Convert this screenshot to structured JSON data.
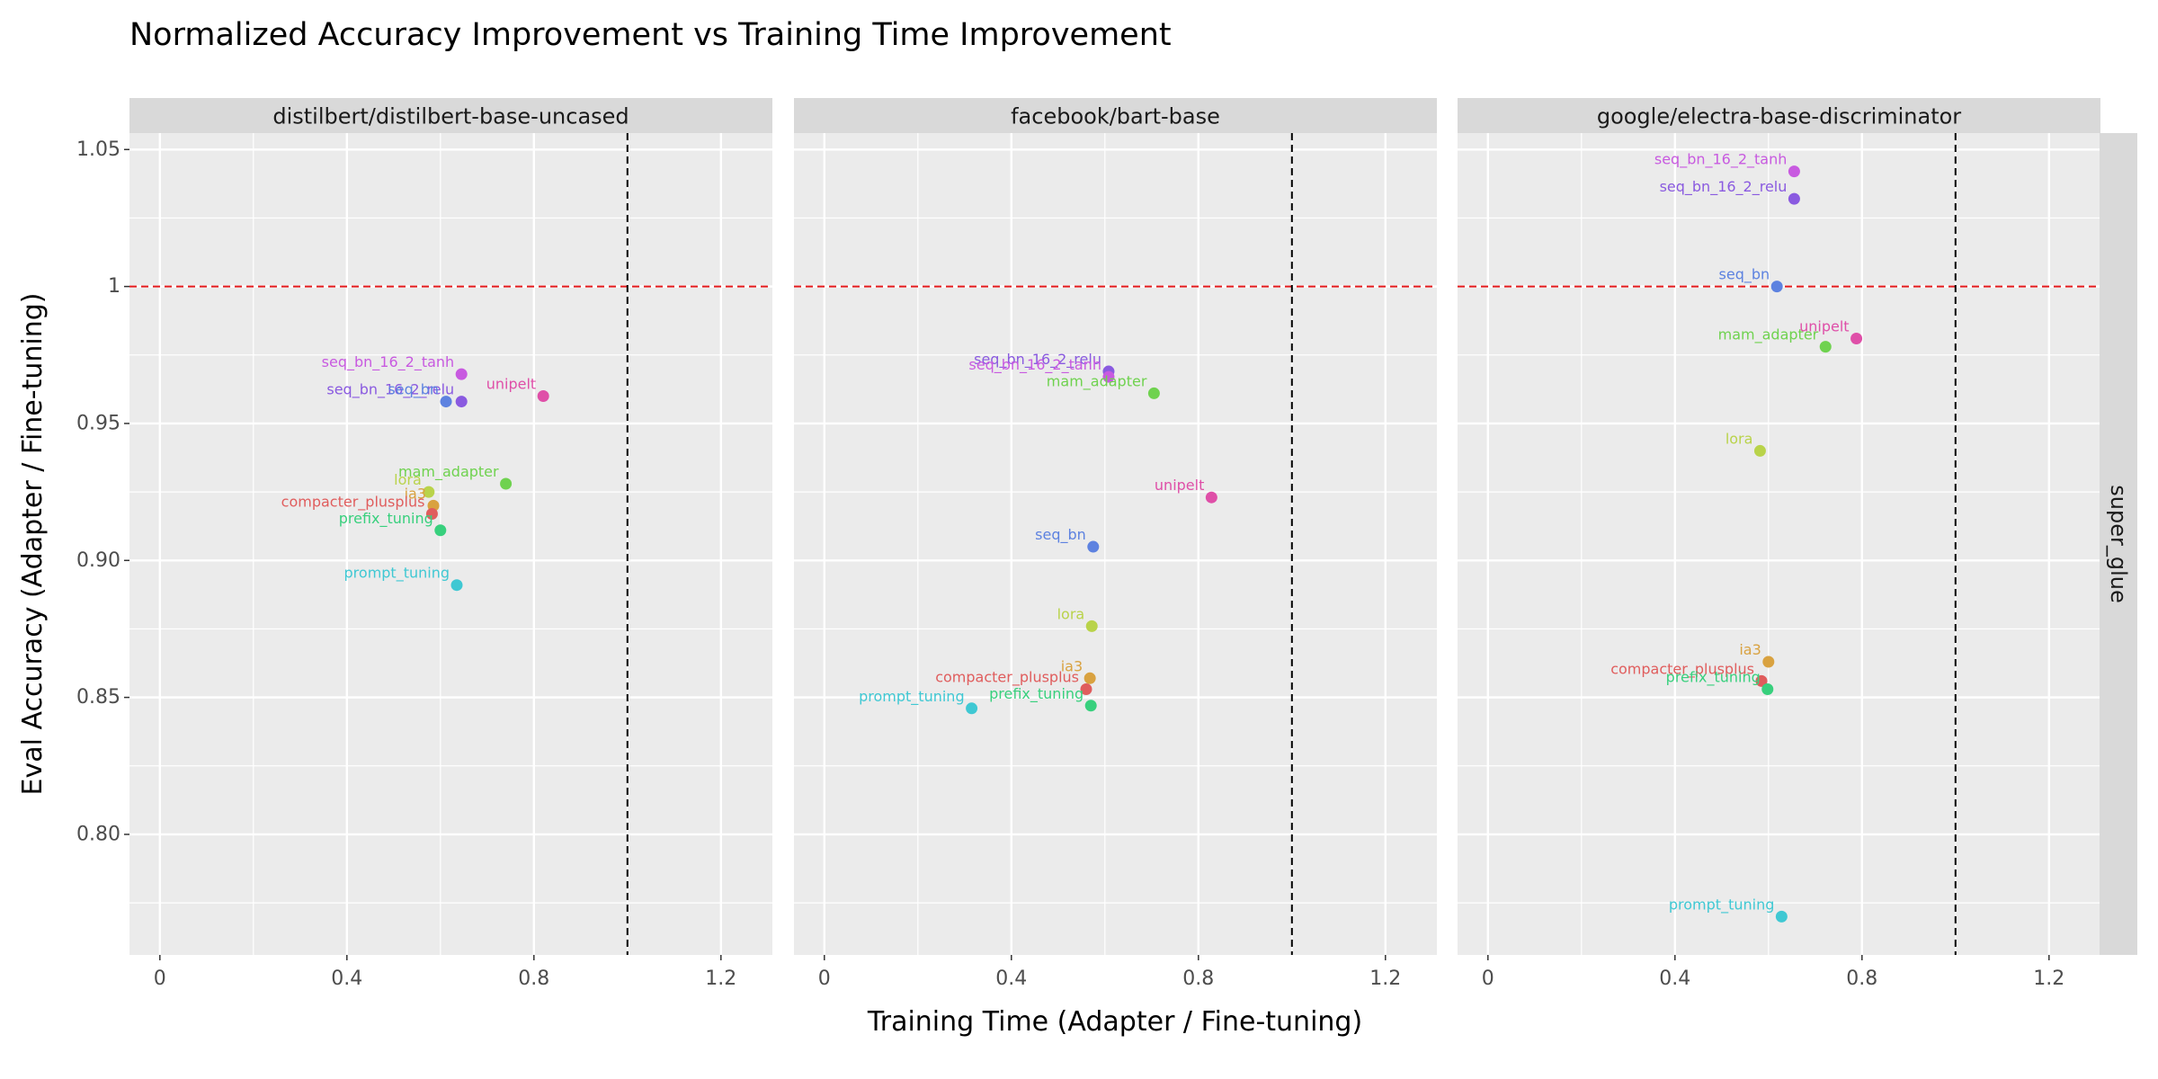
{
  "chart_data": {
    "type": "scatter",
    "title": "Normalized Accuracy Improvement vs Training Time Improvement",
    "xlabel": "Training Time (Adapter / Fine-tuning)",
    "ylabel": "Eval Accuracy (Adapter / Fine-tuning)",
    "facet_row_label": "super_glue",
    "xlim": [
      -0.065,
      1.31
    ],
    "ylim": [
      0.756,
      1.056
    ],
    "x_ticks": [
      0,
      0.4,
      0.8,
      1.2
    ],
    "x_tick_labels": [
      "0",
      "0.4",
      "0.8",
      "1.2"
    ],
    "y_ticks": [
      0.8,
      0.85,
      0.9,
      0.95,
      1.0,
      1.05
    ],
    "y_tick_labels": [
      "0.80",
      "0.85",
      "0.90",
      "0.95",
      "1",
      "1.05"
    ],
    "reference_lines": {
      "horizontal": {
        "y": 1.0,
        "color": "#e31a1c",
        "style": "dashed"
      },
      "vertical": {
        "x": 1.0,
        "color": "#000000",
        "style": "dashed"
      }
    },
    "grid": true,
    "method_colors": {
      "compacter_plusplus": "#e05d5d",
      "ia3": "#d9a240",
      "lora": "#b9d34a",
      "mam_adapter": "#6fd24f",
      "prefix_tuning": "#38d07d",
      "prompt_tuning": "#3fc8d3",
      "seq_bn": "#5d82e0",
      "seq_bn_16_2_relu": "#8a5ae0",
      "seq_bn_16_2_tanh": "#c85ae0",
      "unipelt": "#df4fa8"
    },
    "panels": [
      {
        "name": "distilbert/distilbert-base-uncased",
        "points": [
          {
            "method": "seq_bn_16_2_tanh",
            "x": 0.645,
            "y": 0.968
          },
          {
            "method": "seq_bn_16_2_relu",
            "x": 0.645,
            "y": 0.958
          },
          {
            "method": "seq_bn",
            "x": 0.612,
            "y": 0.958
          },
          {
            "method": "unipelt",
            "x": 0.82,
            "y": 0.96
          },
          {
            "method": "mam_adapter",
            "x": 0.74,
            "y": 0.928
          },
          {
            "method": "lora",
            "x": 0.575,
            "y": 0.925
          },
          {
            "method": "ia3",
            "x": 0.585,
            "y": 0.92
          },
          {
            "method": "compacter_plusplus",
            "x": 0.582,
            "y": 0.917
          },
          {
            "method": "prefix_tuning",
            "x": 0.6,
            "y": 0.911
          },
          {
            "method": "prompt_tuning",
            "x": 0.635,
            "y": 0.891
          }
        ]
      },
      {
        "name": "facebook/bart-base",
        "points": [
          {
            "method": "seq_bn_16_2_relu",
            "x": 0.608,
            "y": 0.969
          },
          {
            "method": "seq_bn_16_2_tanh",
            "x": 0.608,
            "y": 0.967
          },
          {
            "method": "mam_adapter",
            "x": 0.705,
            "y": 0.961
          },
          {
            "method": "unipelt",
            "x": 0.828,
            "y": 0.923
          },
          {
            "method": "seq_bn",
            "x": 0.575,
            "y": 0.905
          },
          {
            "method": "lora",
            "x": 0.572,
            "y": 0.876
          },
          {
            "method": "ia3",
            "x": 0.568,
            "y": 0.857
          },
          {
            "method": "compacter_plusplus",
            "x": 0.56,
            "y": 0.853
          },
          {
            "method": "prefix_tuning",
            "x": 0.57,
            "y": 0.847
          },
          {
            "method": "prompt_tuning",
            "x": 0.315,
            "y": 0.846
          }
        ]
      },
      {
        "name": "google/electra-base-discriminator",
        "points": [
          {
            "method": "seq_bn_16_2_tanh",
            "x": 0.655,
            "y": 1.042
          },
          {
            "method": "seq_bn_16_2_relu",
            "x": 0.655,
            "y": 1.032
          },
          {
            "method": "seq_bn",
            "x": 0.618,
            "y": 1.0
          },
          {
            "method": "unipelt",
            "x": 0.788,
            "y": 0.981
          },
          {
            "method": "mam_adapter",
            "x": 0.722,
            "y": 0.978
          },
          {
            "method": "lora",
            "x": 0.582,
            "y": 0.94
          },
          {
            "method": "ia3",
            "x": 0.6,
            "y": 0.863
          },
          {
            "method": "compacter_plusplus",
            "x": 0.585,
            "y": 0.856
          },
          {
            "method": "prefix_tuning",
            "x": 0.598,
            "y": 0.853
          },
          {
            "method": "prompt_tuning",
            "x": 0.628,
            "y": 0.77
          }
        ]
      }
    ]
  }
}
